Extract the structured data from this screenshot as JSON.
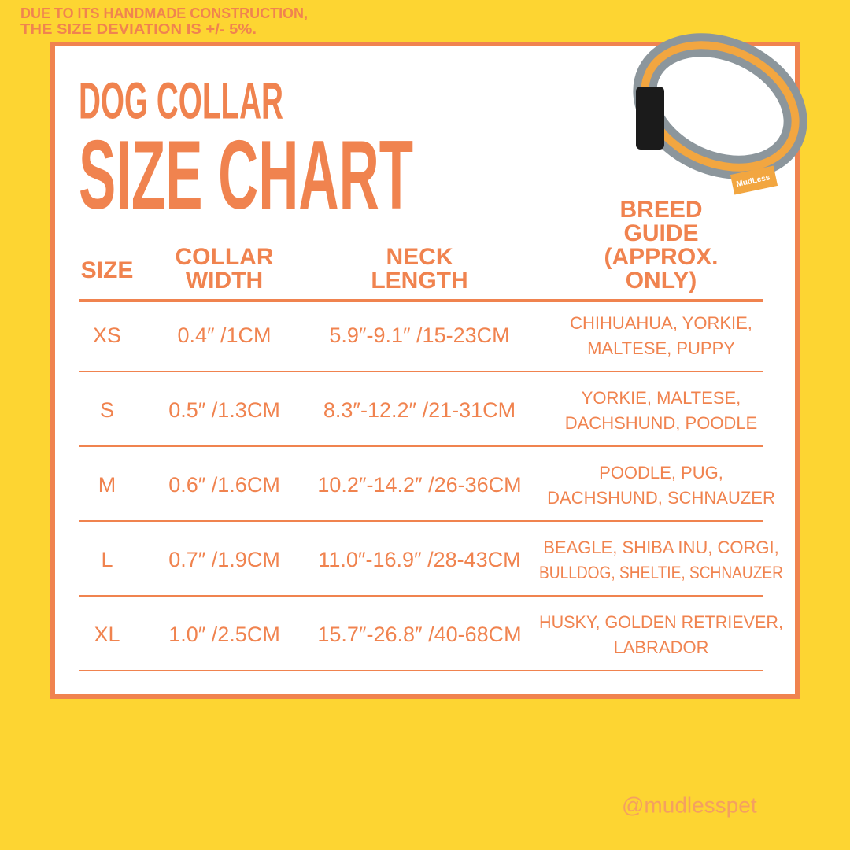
{
  "note": [
    "DUE TO ITS HANDMADE CONSTRUCTION,",
    "THE SIZE DEVIATION IS +/- 5%."
  ],
  "title": {
    "line1": "DOG COLLAR",
    "line2": "SIZE CHART"
  },
  "product_label": "MudLess",
  "table": {
    "headers": [
      [
        "SIZE"
      ],
      [
        "COLLAR",
        "WIDTH"
      ],
      [
        "NECK",
        "LENGTH"
      ],
      [
        "BREED",
        "GUIDE",
        "(APPROX.",
        "ONLY)"
      ]
    ],
    "rows": [
      [
        "XS",
        "0.4″ /1CM",
        "5.9″-9.1″ /15-23CM",
        [
          "CHIHUAHUA, YORKIE,",
          "MALTESE, PUPPY"
        ]
      ],
      [
        "S",
        "0.5″ /1.3CM",
        "8.3″-12.2″ /21-31CM",
        [
          "YORKIE, MALTESE,",
          "DACHSHUND, POODLE"
        ]
      ],
      [
        "M",
        "0.6″ /1.6CM",
        "10.2″-14.2″ /26-36CM",
        [
          "POODLE, PUG,",
          "DACHSHUND, SCHNAUZER"
        ]
      ],
      [
        "L",
        "0.7″ /1.9CM",
        "11.0″-16.9″ /28-43CM",
        [
          "BEAGLE, SHIBA INU, CORGI,",
          "BULLDOG, SHELTIE, SCHNAUZER"
        ]
      ],
      [
        "XL",
        "1.0″ /2.5CM",
        "15.7″-26.8″ /40-68CM",
        [
          "HUSKY, GOLDEN RETRIEVER,",
          "LABRADOR"
        ]
      ]
    ]
  },
  "handle": "@mudlesspet"
}
